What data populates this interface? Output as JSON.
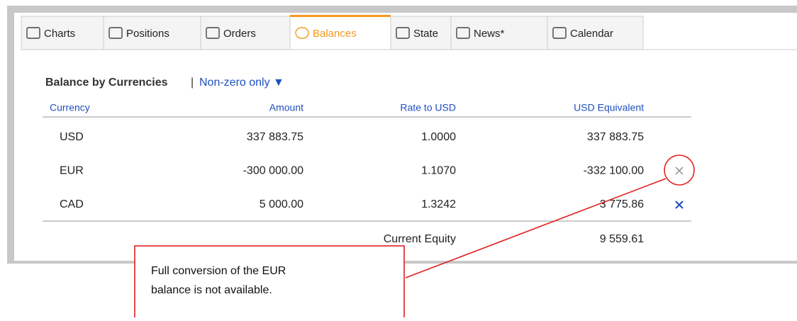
{
  "tabs": [
    "Charts",
    "Positions",
    "Orders",
    "Balances",
    "State",
    "News*",
    "Calendar"
  ],
  "active_tab": "Balances",
  "section": {
    "title": "Balance by Currencies",
    "separator": "|",
    "filter": "Non-zero only ▼"
  },
  "table": {
    "headers": [
      "Currency",
      "Amount",
      "Rate to USD",
      "USD Equivalent"
    ],
    "rows": [
      [
        "USD",
        "337 883.75",
        "1.0000",
        "337 883.75"
      ],
      [
        "EUR",
        "-300 000.00",
        "1.1070",
        "-332 100.00"
      ],
      [
        "CAD",
        "5 000.00",
        "1.3242",
        "3 775.86"
      ]
    ],
    "footer": {
      "label": "Current Equity",
      "value": "9 559.61"
    }
  },
  "callout": {
    "lines": [
      "Full conversion of the EUR",
      "balance is not available."
    ]
  }
}
